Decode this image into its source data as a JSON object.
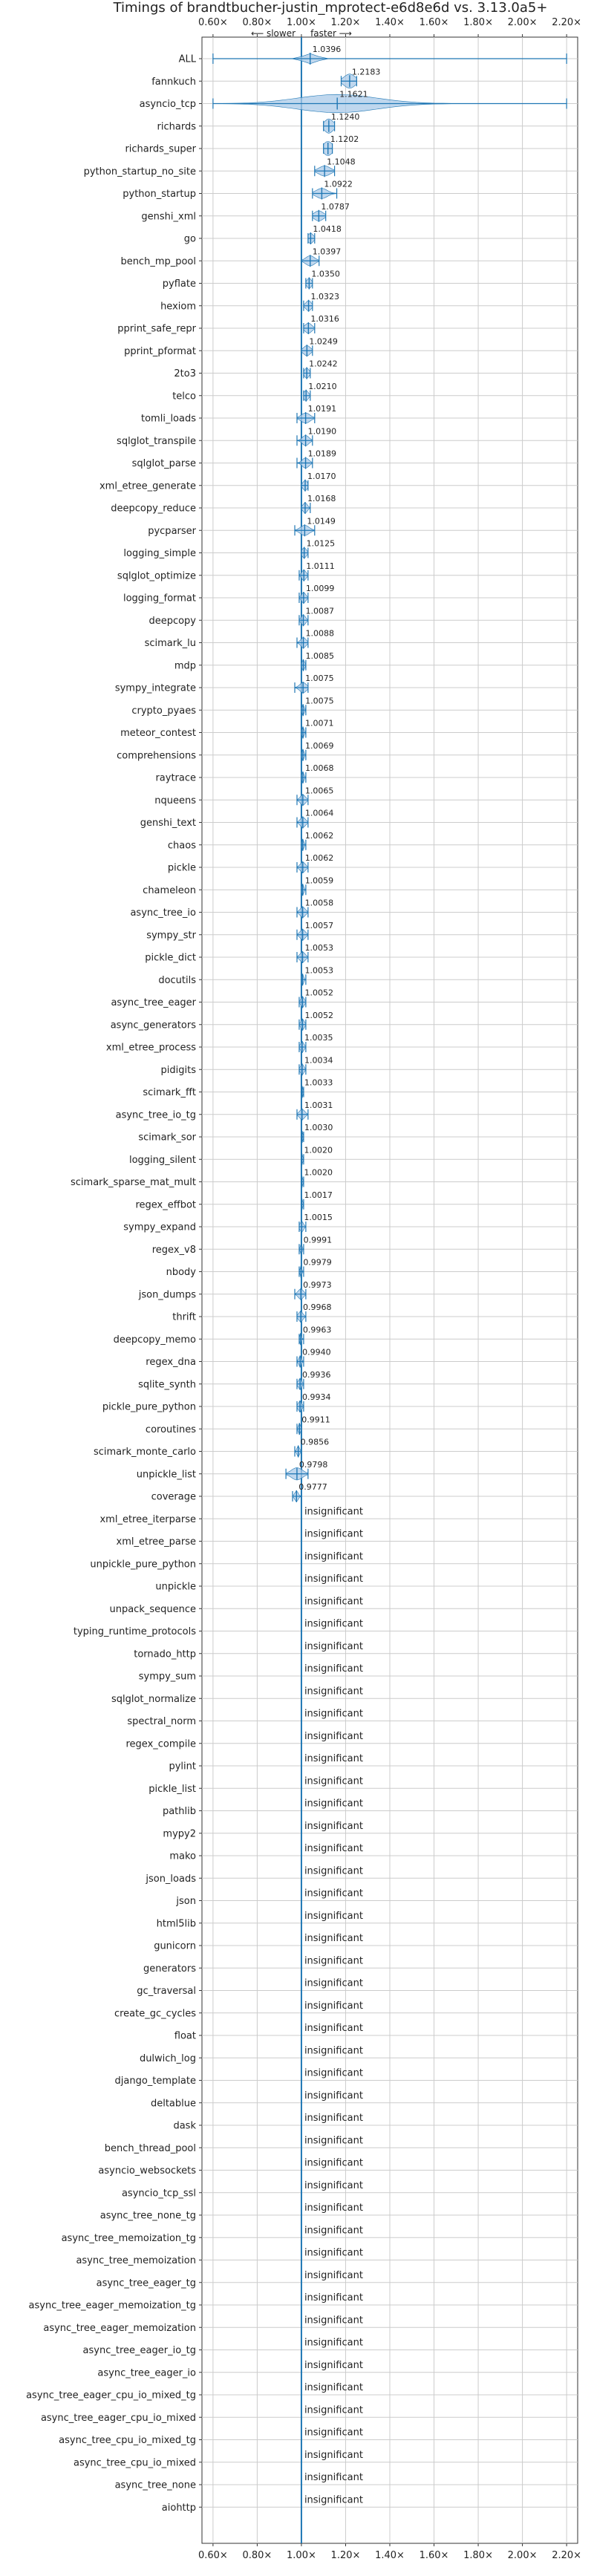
{
  "chart_data": {
    "type": "violin",
    "title": "Timings of brandtbucher-justin_mprotect-e6d8e6d vs. 3.13.0a5+",
    "direction_labels": {
      "slower": "⟵ slower",
      "faster": "faster ⟶"
    },
    "xlim": [
      0.55,
      2.25
    ],
    "x_ticks": [
      0.6,
      0.8,
      1.0,
      1.2,
      1.4,
      1.6,
      1.8,
      2.0,
      2.2
    ],
    "x_tick_labels": [
      "0.60×",
      "0.80×",
      "1.00×",
      "1.20×",
      "1.40×",
      "1.60×",
      "1.80×",
      "2.00×",
      "2.20×"
    ],
    "baseline": 1.0,
    "grid": true,
    "insignificant_label": "insignificant",
    "benchmarks": [
      {
        "name": "ALL",
        "value": 1.0396,
        "label": "1.0396",
        "min": 0.6,
        "max": 2.2,
        "spread": 0.03,
        "width": 0.5
      },
      {
        "name": "fannkuch",
        "value": 1.2183,
        "label": "1.2183",
        "min": 1.18,
        "max": 1.25,
        "spread": 0.025,
        "width": 0.7
      },
      {
        "name": "asyncio_tcp",
        "value": 1.1621,
        "label": "1.1621",
        "min": 0.6,
        "max": 2.2,
        "spread": 0.18,
        "width": 0.9
      },
      {
        "name": "richards",
        "value": 1.124,
        "label": "1.1240",
        "min": 1.1,
        "max": 1.15,
        "spread": 0.02,
        "width": 0.7
      },
      {
        "name": "richards_super",
        "value": 1.1202,
        "label": "1.1202",
        "min": 1.1,
        "max": 1.14,
        "spread": 0.02,
        "width": 0.7
      },
      {
        "name": "python_startup_no_site",
        "value": 1.1048,
        "label": "1.1048",
        "min": 1.06,
        "max": 1.15,
        "spread": 0.025,
        "width": 0.5
      },
      {
        "name": "python_startup",
        "value": 1.0922,
        "label": "1.0922",
        "min": 1.05,
        "max": 1.16,
        "spread": 0.025,
        "width": 0.5
      },
      {
        "name": "genshi_xml",
        "value": 1.0787,
        "label": "1.0787",
        "min": 1.05,
        "max": 1.11,
        "spread": 0.02,
        "width": 0.5
      },
      {
        "name": "go",
        "value": 1.0418,
        "label": "1.0418",
        "min": 1.03,
        "max": 1.06,
        "spread": 0.012,
        "width": 0.5
      },
      {
        "name": "bench_mp_pool",
        "value": 1.0397,
        "label": "1.0397",
        "min": 1.0,
        "max": 1.08,
        "spread": 0.02,
        "width": 0.5
      },
      {
        "name": "pyflate",
        "value": 1.035,
        "label": "1.0350",
        "min": 1.02,
        "max": 1.05,
        "spread": 0.01,
        "width": 0.5
      },
      {
        "name": "hexiom",
        "value": 1.0323,
        "label": "1.0323",
        "min": 1.01,
        "max": 1.05,
        "spread": 0.012,
        "width": 0.5
      },
      {
        "name": "pprint_safe_repr",
        "value": 1.0316,
        "label": "1.0316",
        "min": 1.01,
        "max": 1.06,
        "spread": 0.015,
        "width": 0.5
      },
      {
        "name": "pprint_pformat",
        "value": 1.0249,
        "label": "1.0249",
        "min": 1.0,
        "max": 1.05,
        "spread": 0.015,
        "width": 0.5
      },
      {
        "name": "2to3",
        "value": 1.0242,
        "label": "1.0242",
        "min": 1.01,
        "max": 1.04,
        "spread": 0.01,
        "width": 0.5
      },
      {
        "name": "telco",
        "value": 1.021,
        "label": "1.0210",
        "min": 1.01,
        "max": 1.04,
        "spread": 0.01,
        "width": 0.5
      },
      {
        "name": "tomli_loads",
        "value": 1.0191,
        "label": "1.0191",
        "min": 0.98,
        "max": 1.06,
        "spread": 0.02,
        "width": 0.5
      },
      {
        "name": "sqlglot_transpile",
        "value": 1.019,
        "label": "1.0190",
        "min": 0.98,
        "max": 1.05,
        "spread": 0.015,
        "width": 0.5
      },
      {
        "name": "sqlglot_parse",
        "value": 1.0189,
        "label": "1.0189",
        "min": 0.98,
        "max": 1.05,
        "spread": 0.015,
        "width": 0.5
      },
      {
        "name": "xml_etree_generate",
        "value": 1.017,
        "label": "1.0170",
        "min": 1.0,
        "max": 1.03,
        "spread": 0.01,
        "width": 0.5
      },
      {
        "name": "deepcopy_reduce",
        "value": 1.0168,
        "label": "1.0168",
        "min": 1.0,
        "max": 1.04,
        "spread": 0.01,
        "width": 0.5
      },
      {
        "name": "pycparser",
        "value": 1.0149,
        "label": "1.0149",
        "min": 0.97,
        "max": 1.06,
        "spread": 0.02,
        "width": 0.5
      },
      {
        "name": "logging_simple",
        "value": 1.0125,
        "label": "1.0125",
        "min": 1.0,
        "max": 1.03,
        "spread": 0.01,
        "width": 0.5
      },
      {
        "name": "sqlglot_optimize",
        "value": 1.0111,
        "label": "1.0111",
        "min": 0.99,
        "max": 1.03,
        "spread": 0.01,
        "width": 0.5
      },
      {
        "name": "logging_format",
        "value": 1.0099,
        "label": "1.0099",
        "min": 0.99,
        "max": 1.03,
        "spread": 0.01,
        "width": 0.5
      },
      {
        "name": "deepcopy",
        "value": 1.0087,
        "label": "1.0087",
        "min": 0.99,
        "max": 1.03,
        "spread": 0.01,
        "width": 0.5
      },
      {
        "name": "scimark_lu",
        "value": 1.0088,
        "label": "1.0088",
        "min": 0.98,
        "max": 1.03,
        "spread": 0.012,
        "width": 0.5
      },
      {
        "name": "mdp",
        "value": 1.0085,
        "label": "1.0085",
        "min": 1.0,
        "max": 1.02,
        "spread": 0.006,
        "width": 0.5
      },
      {
        "name": "sympy_integrate",
        "value": 1.0075,
        "label": "1.0075",
        "min": 0.97,
        "max": 1.03,
        "spread": 0.015,
        "width": 0.5
      },
      {
        "name": "crypto_pyaes",
        "value": 1.0075,
        "label": "1.0075",
        "min": 1.0,
        "max": 1.02,
        "spread": 0.005,
        "width": 0.5
      },
      {
        "name": "meteor_contest",
        "value": 1.0071,
        "label": "1.0071",
        "min": 1.0,
        "max": 1.02,
        "spread": 0.005,
        "width": 0.5
      },
      {
        "name": "comprehensions",
        "value": 1.0069,
        "label": "1.0069",
        "min": 1.0,
        "max": 1.02,
        "spread": 0.005,
        "width": 0.5
      },
      {
        "name": "raytrace",
        "value": 1.0068,
        "label": "1.0068",
        "min": 1.0,
        "max": 1.02,
        "spread": 0.005,
        "width": 0.5
      },
      {
        "name": "nqueens",
        "value": 1.0065,
        "label": "1.0065",
        "min": 0.98,
        "max": 1.03,
        "spread": 0.012,
        "width": 0.5
      },
      {
        "name": "genshi_text",
        "value": 1.0064,
        "label": "1.0064",
        "min": 0.98,
        "max": 1.03,
        "spread": 0.012,
        "width": 0.5
      },
      {
        "name": "chaos",
        "value": 1.0062,
        "label": "1.0062",
        "min": 1.0,
        "max": 1.02,
        "spread": 0.005,
        "width": 0.5
      },
      {
        "name": "pickle",
        "value": 1.0062,
        "label": "1.0062",
        "min": 0.98,
        "max": 1.03,
        "spread": 0.012,
        "width": 0.5
      },
      {
        "name": "chameleon",
        "value": 1.0059,
        "label": "1.0059",
        "min": 1.0,
        "max": 1.02,
        "spread": 0.005,
        "width": 0.5
      },
      {
        "name": "async_tree_io",
        "value": 1.0058,
        "label": "1.0058",
        "min": 0.98,
        "max": 1.03,
        "spread": 0.012,
        "width": 0.5
      },
      {
        "name": "sympy_str",
        "value": 1.0057,
        "label": "1.0057",
        "min": 0.98,
        "max": 1.03,
        "spread": 0.012,
        "width": 0.5
      },
      {
        "name": "pickle_dict",
        "value": 1.0053,
        "label": "1.0053",
        "min": 0.98,
        "max": 1.03,
        "spread": 0.012,
        "width": 0.5
      },
      {
        "name": "docutils",
        "value": 1.0053,
        "label": "1.0053",
        "min": 1.0,
        "max": 1.02,
        "spread": 0.005,
        "width": 0.5
      },
      {
        "name": "async_tree_eager",
        "value": 1.0052,
        "label": "1.0052",
        "min": 0.99,
        "max": 1.02,
        "spread": 0.008,
        "width": 0.5
      },
      {
        "name": "async_generators",
        "value": 1.0052,
        "label": "1.0052",
        "min": 0.99,
        "max": 1.02,
        "spread": 0.008,
        "width": 0.5
      },
      {
        "name": "xml_etree_process",
        "value": 1.0035,
        "label": "1.0035",
        "min": 0.99,
        "max": 1.02,
        "spread": 0.008,
        "width": 0.5
      },
      {
        "name": "pidigits",
        "value": 1.0034,
        "label": "1.0034",
        "min": 0.99,
        "max": 1.02,
        "spread": 0.008,
        "width": 0.5
      },
      {
        "name": "scimark_fft",
        "value": 1.0033,
        "label": "1.0033",
        "min": 1.0,
        "max": 1.01,
        "spread": 0.004,
        "width": 0.5
      },
      {
        "name": "async_tree_io_tg",
        "value": 1.0031,
        "label": "1.0031",
        "min": 0.98,
        "max": 1.03,
        "spread": 0.012,
        "width": 0.5
      },
      {
        "name": "scimark_sor",
        "value": 1.003,
        "label": "1.0030",
        "min": 1.0,
        "max": 1.01,
        "spread": 0.004,
        "width": 0.5
      },
      {
        "name": "logging_silent",
        "value": 1.002,
        "label": "1.0020",
        "min": 1.0,
        "max": 1.01,
        "spread": 0.004,
        "width": 0.5
      },
      {
        "name": "scimark_sparse_mat_mult",
        "value": 1.002,
        "label": "1.0020",
        "min": 1.0,
        "max": 1.01,
        "spread": 0.004,
        "width": 0.5
      },
      {
        "name": "regex_effbot",
        "value": 1.0017,
        "label": "1.0017",
        "min": 1.0,
        "max": 1.01,
        "spread": 0.004,
        "width": 0.5
      },
      {
        "name": "sympy_expand",
        "value": 1.0015,
        "label": "1.0015",
        "min": 0.99,
        "max": 1.02,
        "spread": 0.008,
        "width": 0.5
      },
      {
        "name": "regex_v8",
        "value": 0.9991,
        "label": "0.9991",
        "min": 0.99,
        "max": 1.01,
        "spread": 0.004,
        "width": 0.5
      },
      {
        "name": "nbody",
        "value": 0.9979,
        "label": "0.9979",
        "min": 0.99,
        "max": 1.01,
        "spread": 0.004,
        "width": 0.5
      },
      {
        "name": "json_dumps",
        "value": 0.9973,
        "label": "0.9973",
        "min": 0.97,
        "max": 1.02,
        "spread": 0.012,
        "width": 0.5
      },
      {
        "name": "thrift",
        "value": 0.9968,
        "label": "0.9968",
        "min": 0.98,
        "max": 1.02,
        "spread": 0.01,
        "width": 0.5
      },
      {
        "name": "deepcopy_memo",
        "value": 0.9963,
        "label": "0.9963",
        "min": 0.99,
        "max": 1.01,
        "spread": 0.004,
        "width": 0.5
      },
      {
        "name": "regex_dna",
        "value": 0.994,
        "label": "0.9940",
        "min": 0.98,
        "max": 1.01,
        "spread": 0.006,
        "width": 0.5
      },
      {
        "name": "sqlite_synth",
        "value": 0.9936,
        "label": "0.9936",
        "min": 0.98,
        "max": 1.01,
        "spread": 0.008,
        "width": 0.5
      },
      {
        "name": "pickle_pure_python",
        "value": 0.9934,
        "label": "0.9934",
        "min": 0.98,
        "max": 1.01,
        "spread": 0.008,
        "width": 0.5
      },
      {
        "name": "coroutines",
        "value": 0.9911,
        "label": "0.9911",
        "min": 0.98,
        "max": 1.0,
        "spread": 0.005,
        "width": 0.5
      },
      {
        "name": "scimark_monte_carlo",
        "value": 0.9856,
        "label": "0.9856",
        "min": 0.97,
        "max": 1.0,
        "spread": 0.006,
        "width": 0.5
      },
      {
        "name": "unpickle_list",
        "value": 0.9798,
        "label": "0.9798",
        "min": 0.93,
        "max": 1.03,
        "spread": 0.025,
        "width": 0.6
      },
      {
        "name": "coverage",
        "value": 0.9777,
        "label": "0.9777",
        "min": 0.96,
        "max": 1.0,
        "spread": 0.008,
        "width": 0.5
      },
      {
        "name": "xml_etree_iterparse",
        "value": null
      },
      {
        "name": "xml_etree_parse",
        "value": null
      },
      {
        "name": "unpickle_pure_python",
        "value": null
      },
      {
        "name": "unpickle",
        "value": null
      },
      {
        "name": "unpack_sequence",
        "value": null
      },
      {
        "name": "typing_runtime_protocols",
        "value": null
      },
      {
        "name": "tornado_http",
        "value": null
      },
      {
        "name": "sympy_sum",
        "value": null
      },
      {
        "name": "sqlglot_normalize",
        "value": null
      },
      {
        "name": "spectral_norm",
        "value": null
      },
      {
        "name": "regex_compile",
        "value": null
      },
      {
        "name": "pylint",
        "value": null
      },
      {
        "name": "pickle_list",
        "value": null
      },
      {
        "name": "pathlib",
        "value": null
      },
      {
        "name": "mypy2",
        "value": null
      },
      {
        "name": "mako",
        "value": null
      },
      {
        "name": "json_loads",
        "value": null
      },
      {
        "name": "json",
        "value": null
      },
      {
        "name": "html5lib",
        "value": null
      },
      {
        "name": "gunicorn",
        "value": null
      },
      {
        "name": "generators",
        "value": null
      },
      {
        "name": "gc_traversal",
        "value": null
      },
      {
        "name": "create_gc_cycles",
        "value": null
      },
      {
        "name": "float",
        "value": null
      },
      {
        "name": "dulwich_log",
        "value": null
      },
      {
        "name": "django_template",
        "value": null
      },
      {
        "name": "deltablue",
        "value": null
      },
      {
        "name": "dask",
        "value": null
      },
      {
        "name": "bench_thread_pool",
        "value": null
      },
      {
        "name": "asyncio_websockets",
        "value": null
      },
      {
        "name": "asyncio_tcp_ssl",
        "value": null
      },
      {
        "name": "async_tree_none_tg",
        "value": null
      },
      {
        "name": "async_tree_memoization_tg",
        "value": null
      },
      {
        "name": "async_tree_memoization",
        "value": null
      },
      {
        "name": "async_tree_eager_tg",
        "value": null
      },
      {
        "name": "async_tree_eager_memoization_tg",
        "value": null
      },
      {
        "name": "async_tree_eager_memoization",
        "value": null
      },
      {
        "name": "async_tree_eager_io_tg",
        "value": null
      },
      {
        "name": "async_tree_eager_io",
        "value": null
      },
      {
        "name": "async_tree_eager_cpu_io_mixed_tg",
        "value": null
      },
      {
        "name": "async_tree_eager_cpu_io_mixed",
        "value": null
      },
      {
        "name": "async_tree_cpu_io_mixed_tg",
        "value": null
      },
      {
        "name": "async_tree_cpu_io_mixed",
        "value": null
      },
      {
        "name": "async_tree_none",
        "value": null
      },
      {
        "name": "aiohttp",
        "value": null
      }
    ],
    "colors": {
      "violin_fill": "#a9c9e8",
      "violin_edge": "#1f77b4",
      "baseline": "#1f77b4",
      "median": "#d62728",
      "grid": "#cccccc",
      "axis": "#333333"
    }
  }
}
